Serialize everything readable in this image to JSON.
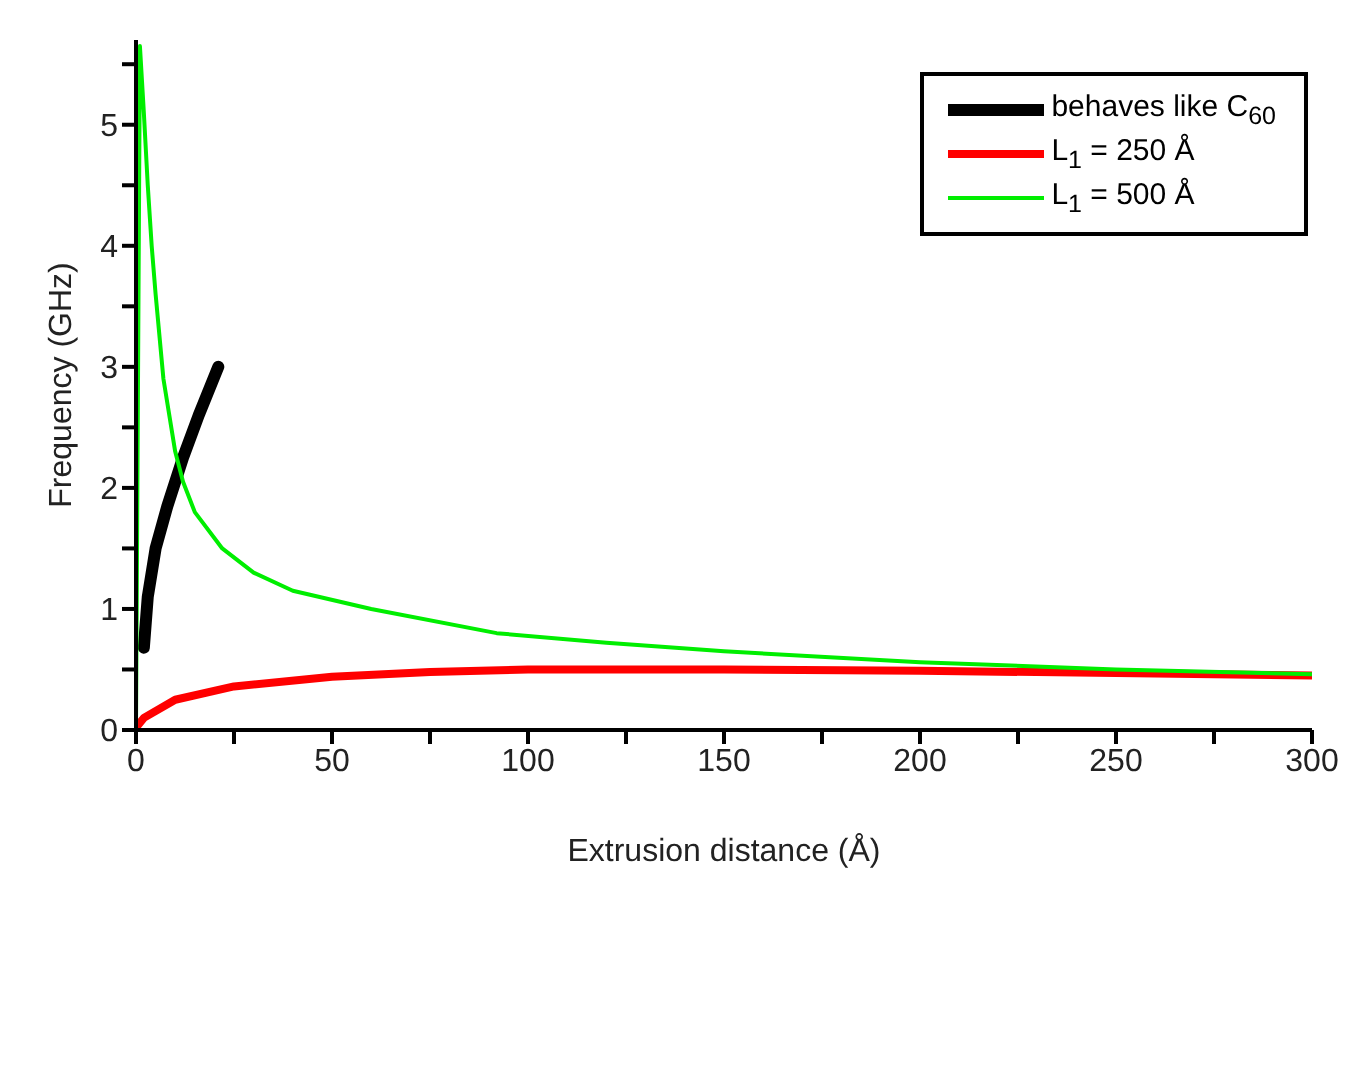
{
  "chart_data": {
    "type": "line",
    "xlabel": "Extrusion distance (Å)",
    "ylabel": "Frequency (GHz)",
    "xlim": [
      0,
      300
    ],
    "xticks": [
      0,
      {
        "value": 25,
        "label": null
      },
      50,
      {
        "value": 75,
        "label": null
      },
      100,
      {
        "value": 125,
        "label": null
      },
      150,
      {
        "value": 175,
        "label": null
      },
      200,
      {
        "value": 225,
        "label": null
      },
      250,
      {
        "value": 275,
        "label": null
      },
      300
    ],
    "ylim": [
      0,
      5.7
    ],
    "yticks": [
      0,
      {
        "value": 0.5,
        "label": null
      },
      1,
      {
        "value": 1.5,
        "label": null
      },
      2,
      {
        "value": 2.5,
        "label": null
      },
      3,
      {
        "value": 3.5,
        "label": null
      },
      4,
      {
        "value": 4.5,
        "label": null
      },
      5,
      {
        "value": 5.5,
        "label": null
      }
    ],
    "grid": false,
    "legend": "top right",
    "marker": "none",
    "line_style": "solid",
    "series": [
      {
        "name": "behaves like C$_{60}$",
        "color": "#000000",
        "x": [
          2,
          3,
          5,
          8,
          12,
          16,
          21
        ],
        "values": [
          0.68,
          1.1,
          1.5,
          1.85,
          2.25,
          2.6,
          3.0
        ]
      },
      {
        "name": "L$_{1}$ = 250 Å",
        "color": "#ff0000",
        "x": [
          0,
          2,
          10,
          25,
          50,
          75,
          100,
          150,
          200,
          250,
          300
        ],
        "values": [
          0.02,
          0.1,
          0.25,
          0.36,
          0.44,
          0.48,
          0.5,
          0.5,
          0.49,
          0.47,
          0.45
        ]
      },
      {
        "name": "L$_{1}$ = 500 Å",
        "color": "#00ee00",
        "x": [
          0,
          1,
          2,
          3,
          4,
          5,
          7,
          10,
          12,
          15,
          22,
          30,
          40,
          60,
          92,
          120,
          150,
          200,
          250,
          300
        ],
        "values": [
          0,
          5.65,
          5.1,
          4.5,
          4.0,
          3.6,
          2.9,
          2.3,
          2.05,
          1.8,
          1.5,
          1.3,
          1.15,
          1.0,
          0.8,
          0.72,
          0.65,
          0.56,
          0.5,
          0.46
        ]
      }
    ]
  }
}
